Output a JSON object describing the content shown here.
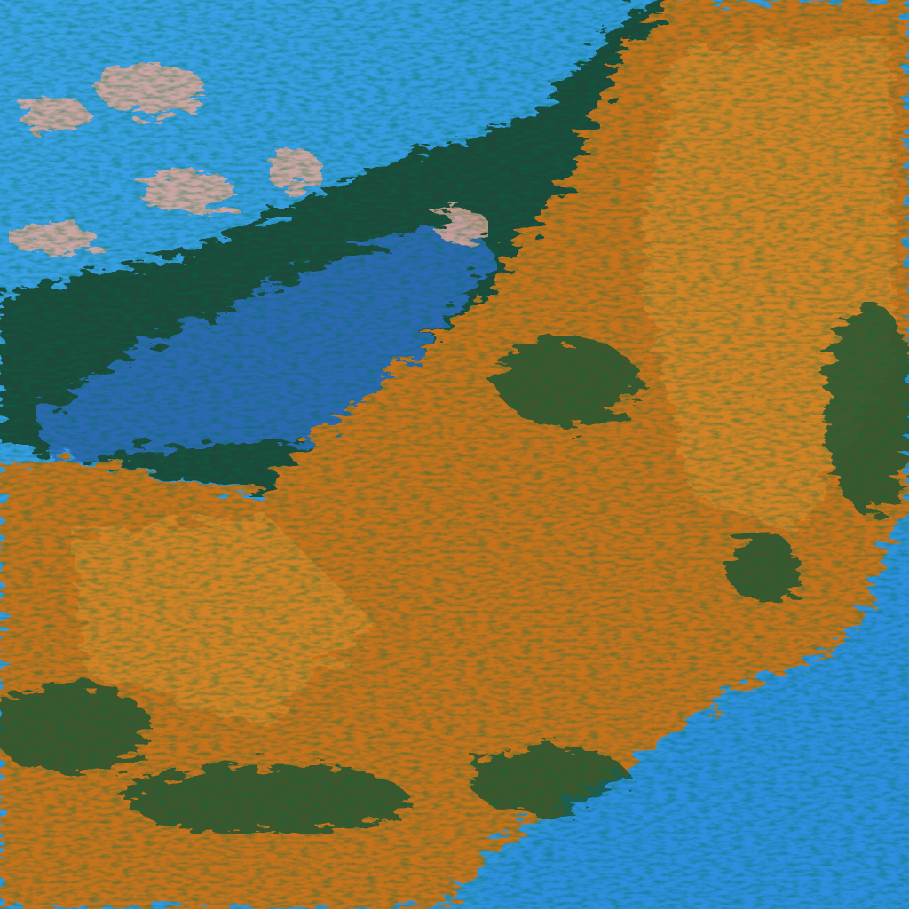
{
  "image": {
    "kind": "false-color satellite cloud imagery",
    "colors": {
      "clear_sky_blue": "#2f9be0",
      "deep_blue": "#1f6fc0",
      "cloud_orange": "#c8741a",
      "cloud_orange_light": "#d98a2a",
      "shadow_green": "#1f4a2a",
      "pink_cloud": "#e8a89a"
    }
  }
}
